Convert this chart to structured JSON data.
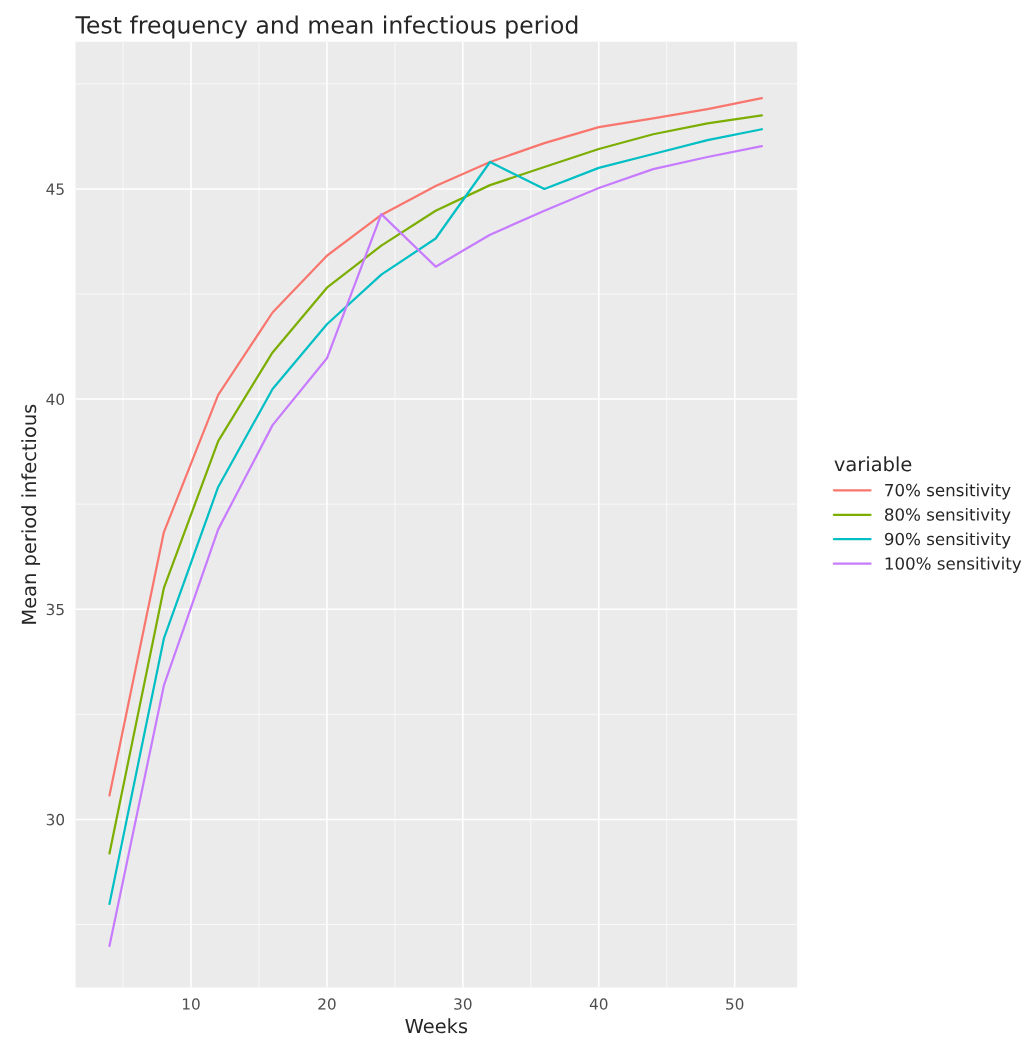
{
  "chart_data": {
    "type": "line",
    "title": "Test frequency and mean infectious period",
    "xlabel": "Weeks",
    "ylabel": "Mean period infectious",
    "legend_title": "variable",
    "legend": "right",
    "grid": true,
    "marker": "none",
    "line_style": "solid",
    "x": [
      4,
      8,
      12,
      16,
      20,
      24,
      28,
      32,
      36,
      40,
      44,
      48,
      52
    ],
    "xlim": [
      1.5,
      54.6
    ],
    "xticks": [
      10,
      20,
      30,
      40,
      50
    ],
    "ylim": [
      26.0,
      48.5
    ],
    "yticks": [
      30,
      35,
      40,
      45
    ],
    "series": [
      {
        "name": "70% sensitivity",
        "color": "#f8766d",
        "values": [
          30.57,
          36.83,
          40.1,
          42.06,
          43.41,
          44.38,
          45.07,
          45.64,
          46.09,
          46.47,
          46.68,
          46.9,
          47.16
        ]
      },
      {
        "name": "80% sensitivity",
        "color": "#7cae00",
        "values": [
          29.19,
          35.5,
          39.0,
          41.11,
          42.65,
          43.65,
          44.48,
          45.09,
          45.52,
          45.95,
          46.3,
          46.56,
          46.75
        ]
      },
      {
        "name": "90% sensitivity",
        "color": "#00bfc4",
        "values": [
          27.99,
          34.3,
          37.91,
          40.24,
          41.78,
          42.96,
          43.82,
          45.64,
          45.0,
          45.5,
          45.83,
          46.16,
          46.42
        ]
      },
      {
        "name": "100% sensitivity",
        "color": "#c77cff",
        "values": [
          26.99,
          33.18,
          36.9,
          39.38,
          40.97,
          44.4,
          43.15,
          43.91,
          44.48,
          45.02,
          45.47,
          45.76,
          46.02
        ]
      }
    ]
  }
}
